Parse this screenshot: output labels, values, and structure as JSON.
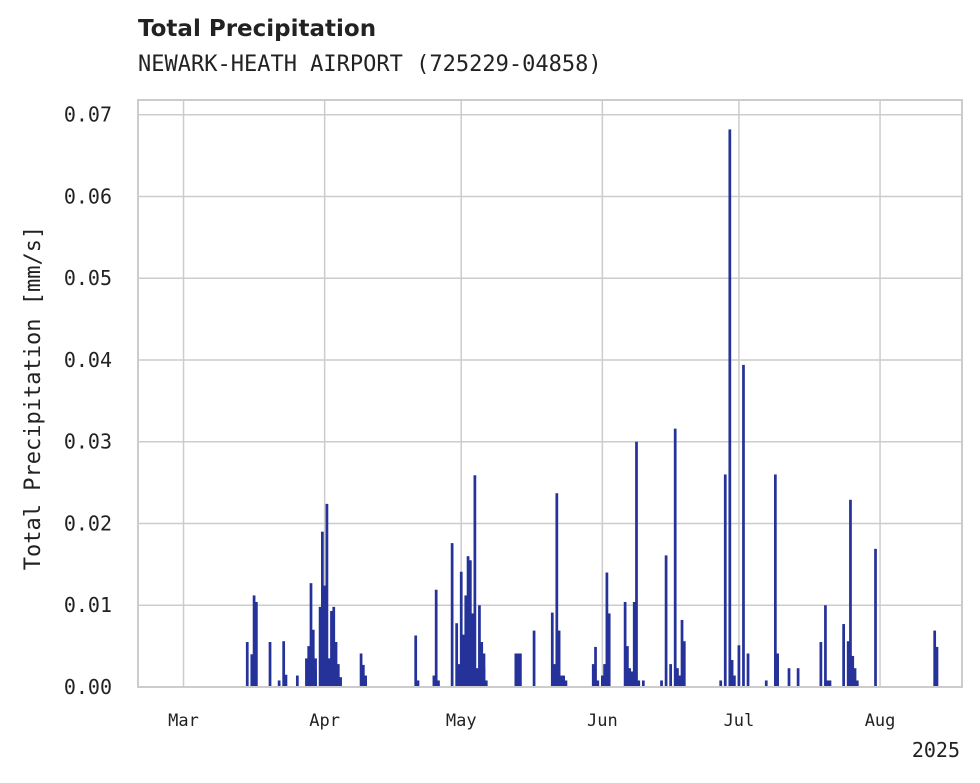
{
  "chart_data": {
    "type": "bar",
    "title": "Total Precipitation",
    "subtitle": "NEWARK-HEATH AIRPORT (725229-04858)",
    "xlabel": "",
    "ylabel": "Total Precipitation [mm/s]",
    "ylim": [
      0,
      0.0718
    ],
    "xlim": [
      "2025-02-19",
      "2025-08-19"
    ],
    "y_ticks": [
      "0.00",
      "0.01",
      "0.02",
      "0.03",
      "0.04",
      "0.05",
      "0.06",
      "0.07"
    ],
    "y_tick_values": [
      0,
      0.01,
      0.02,
      0.03,
      0.04,
      0.05,
      0.06,
      0.07
    ],
    "x_ticks": [
      {
        "label": "Mar",
        "date": "2025-03-01"
      },
      {
        "label": "Apr",
        "date": "2025-04-01"
      },
      {
        "label": "May",
        "date": "2025-05-01"
      },
      {
        "label": "Jun",
        "date": "2025-06-01"
      },
      {
        "label": "Jul",
        "date": "2025-07-01"
      },
      {
        "label": "Aug",
        "date": "2025-08-01"
      }
    ],
    "x_offset_label": "2025",
    "grid": true,
    "bar_color": "#25329a",
    "series": [
      {
        "x": [
          "2025-03-15",
          "2025-03-16",
          "2025-03-16",
          "2025-03-17",
          "2025-03-20",
          "2025-03-22",
          "2025-03-23",
          "2025-03-23",
          "2025-03-26",
          "2025-03-28",
          "2025-03-28",
          "2025-03-29",
          "2025-03-29",
          "2025-03-29",
          "2025-03-30",
          "2025-03-31",
          "2025-03-31",
          "2025-04-01",
          "2025-04-01",
          "2025-04-02",
          "2025-04-02",
          "2025-04-02",
          "2025-04-03",
          "2025-04-03",
          "2025-04-04",
          "2025-04-04",
          "2025-04-09",
          "2025-04-09",
          "2025-04-10",
          "2025-04-21",
          "2025-04-21",
          "2025-04-25",
          "2025-04-25",
          "2025-04-26",
          "2025-04-29",
          "2025-04-30",
          "2025-04-30",
          "2025-05-01",
          "2025-05-01",
          "2025-05-02",
          "2025-05-02",
          "2025-05-02",
          "2025-05-03",
          "2025-05-03",
          "2025-05-04",
          "2025-05-04",
          "2025-05-05",
          "2025-05-05",
          "2025-05-05",
          "2025-05-06",
          "2025-05-06",
          "2025-05-13",
          "2025-05-13",
          "2025-05-14",
          "2025-05-17",
          "2025-05-21",
          "2025-05-21",
          "2025-05-22",
          "2025-05-22",
          "2025-05-23",
          "2025-05-23",
          "2025-05-24",
          "2025-05-30",
          "2025-05-30",
          "2025-05-31",
          "2025-06-01",
          "2025-06-01",
          "2025-06-02",
          "2025-06-02",
          "2025-06-06",
          "2025-06-06",
          "2025-06-07",
          "2025-06-07",
          "2025-06-08",
          "2025-06-08",
          "2025-06-09",
          "2025-06-10",
          "2025-06-14",
          "2025-06-15",
          "2025-06-16",
          "2025-06-17",
          "2025-06-17",
          "2025-06-18",
          "2025-06-18",
          "2025-06-19",
          "2025-06-27",
          "2025-06-28",
          "2025-06-29",
          "2025-06-29",
          "2025-06-30",
          "2025-07-01",
          "2025-07-02",
          "2025-07-03",
          "2025-07-07",
          "2025-07-09",
          "2025-07-09",
          "2025-07-12",
          "2025-07-14",
          "2025-07-19",
          "2025-07-20",
          "2025-07-20",
          "2025-07-21",
          "2025-07-24",
          "2025-07-25",
          "2025-07-25",
          "2025-07-26",
          "2025-07-26",
          "2025-07-27",
          "2025-07-31",
          "2025-08-13",
          "2025-08-13"
        ],
        "values": [
          0.0055,
          0.004,
          0.0112,
          0.0104,
          0.0055,
          0.0008,
          0.0056,
          0.0015,
          0.0014,
          0.0035,
          0.005,
          0.0127,
          0.007,
          0.002,
          0.0035,
          0.0098,
          0.019,
          0.0124,
          0.0224,
          0.0035,
          0.0093,
          0.0098,
          0.0023,
          0.0055,
          0.0028,
          0.0012,
          0.0041,
          0.0027,
          0.0014,
          0.0063,
          0.0008,
          0.0014,
          0.0119,
          0.0008,
          0.0176,
          0.0078,
          0.0028,
          0.0141,
          0.0064,
          0.0112,
          0.016,
          0.0155,
          0.0055,
          0.009,
          0.0259,
          0.0023,
          0.01,
          0.0055,
          0.0041,
          0.0024,
          0.0008,
          0.0041,
          0.0041,
          0.0041,
          0.0069,
          0.0091,
          0.0028,
          0.0237,
          0.0069,
          0.0014,
          0.0014,
          0.0008,
          0.0028,
          0.0049,
          0.0008,
          0.0014,
          0.0028,
          0.014,
          0.009,
          0.0104,
          0.005,
          0.0023,
          0.0019,
          0.0104,
          0.03,
          0.0008,
          0.0008,
          0.0008,
          0.0161,
          0.0028,
          0.0316,
          0.0023,
          0.0014,
          0.0082,
          0.0056,
          0.0008,
          0.026,
          0.0682,
          0.0033,
          0.0014,
          0.0051,
          0.0394,
          0.0041,
          0.0008,
          0.026,
          0.0041,
          0.0023,
          0.0023,
          0.0055,
          0.01,
          0.0008,
          0.0008,
          0.0077,
          0.0056,
          0.0229,
          0.0038,
          0.0023,
          0.0008,
          0.0169,
          0.0069,
          0.0049
        ]
      }
    ]
  }
}
